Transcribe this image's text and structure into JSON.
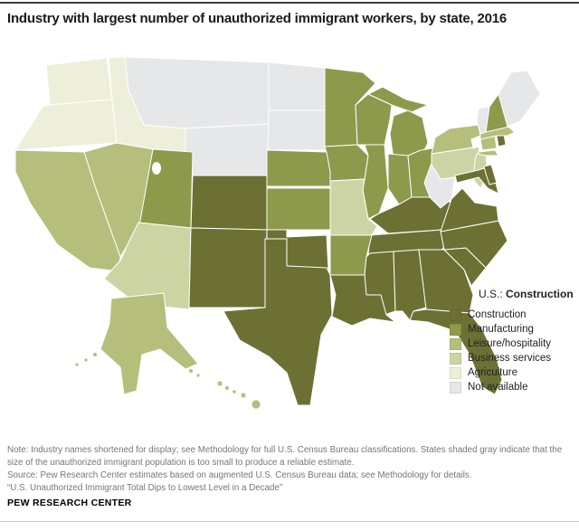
{
  "header": {
    "title": "Industry with largest number of unauthorized immigrant workers, by state, 2016"
  },
  "legend": {
    "us_prefix": "U.S.: ",
    "us_value": "Construction",
    "items": [
      {
        "label": "Construction",
        "color": "#6c7033"
      },
      {
        "label": "Manufacturing",
        "color": "#8d9a4b"
      },
      {
        "label": "Leisure/hospitality",
        "color": "#b6be7c"
      },
      {
        "label": "Business services",
        "color": "#cdd4a4"
      },
      {
        "label": "Agriculture",
        "color": "#edefda"
      },
      {
        "label": "Not available",
        "color": "#e6e7e9"
      }
    ]
  },
  "chart_data": {
    "type": "choropleth-map",
    "title": "Industry with largest number of unauthorized immigrant workers, by state, 2016",
    "region": "United States",
    "year": "2016",
    "us_overall_value": "Construction",
    "categories": [
      "Construction",
      "Manufacturing",
      "Leisure/hospitality",
      "Business services",
      "Agriculture",
      "Not available"
    ],
    "not_available_meaning": "Unauthorized immigrant population too small to produce a reliable estimate",
    "states": {
      "WA": "Agriculture",
      "OR": "Agriculture",
      "ID": "Agriculture",
      "CA": "Leisure/hospitality",
      "NV": "Leisure/hospitality",
      "AK": "Leisure/hospitality",
      "HI": "Leisure/hospitality",
      "NY": "Leisure/hospitality",
      "MA": "Leisure/hospitality",
      "CT": "Leisure/hospitality",
      "AZ": "Business services",
      "MO": "Business services",
      "PA": "Business services",
      "NJ": "Business services",
      "UT": "Manufacturing",
      "KS": "Manufacturing",
      "NE": "Manufacturing",
      "MN": "Manufacturing",
      "IA": "Manufacturing",
      "WI": "Manufacturing",
      "IL": "Manufacturing",
      "IN": "Manufacturing",
      "MI": "Manufacturing",
      "OH": "Manufacturing",
      "AR": "Manufacturing",
      "NH": "Manufacturing",
      "CO": "Construction",
      "NM": "Construction",
      "TX": "Construction",
      "OK": "Construction",
      "LA": "Construction",
      "MS": "Construction",
      "AL": "Construction",
      "GA": "Construction",
      "FL": "Construction",
      "SC": "Construction",
      "NC": "Construction",
      "TN": "Construction",
      "KY": "Construction",
      "VA": "Construction",
      "MD": "Construction",
      "DE": "Construction",
      "RI": "Construction",
      "MT": "Not available",
      "WY": "Not available",
      "ND": "Not available",
      "SD": "Not available",
      "WV": "Not available",
      "VT": "Not available",
      "ME": "Not available"
    }
  },
  "footer": {
    "note": "Note: Industry names shortened for display; see Methodology for full U.S. Census Bureau classifications. States shaded gray indicate that the size of the unauthorized immigrant population is too small to produce a reliable estimate.",
    "source": "Source: Pew Research Center estimates based on augmented U.S. Census Bureau data; see Methodology for details.",
    "report": "“U.S. Unauthorized Immigrant Total Dips to Lowest Level in a Decade”",
    "brand": "PEW RESEARCH CENTER"
  }
}
